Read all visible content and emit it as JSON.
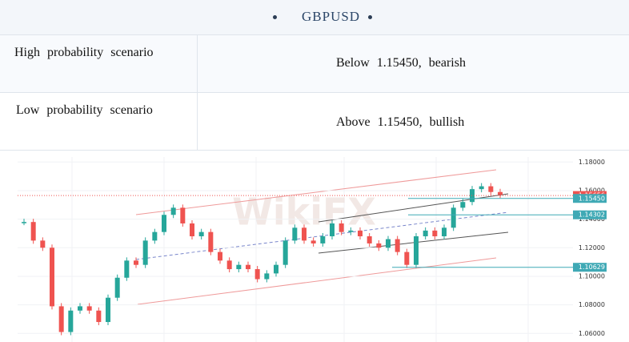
{
  "header": {
    "title": "GBPUSD"
  },
  "table": {
    "rows": [
      [
        "High probability scenario",
        "Below 1.15450, bearish"
      ],
      [
        "Low probability scenario",
        "Above 1.15450, bullish"
      ]
    ]
  },
  "chart_data": {
    "type": "candlestick",
    "watermark": "WikiFX",
    "values": [
      1.138,
      1.125,
      1.12,
      1.079,
      1.061,
      1.076,
      1.079,
      1.076,
      1.068,
      1.085,
      1.099,
      1.111,
      1.108,
      1.125,
      1.131,
      1.143,
      1.148,
      1.137,
      1.128,
      1.131,
      1.117,
      1.111,
      1.105,
      1.108,
      1.105,
      1.098,
      1.102,
      1.108,
      1.125,
      1.134,
      1.125,
      1.123,
      1.128,
      1.137,
      1.131,
      1.132,
      1.128,
      1.123,
      1.12,
      1.126,
      1.117,
      1.108,
      1.128,
      1.132,
      1.128,
      1.134,
      1.148,
      1.152,
      1.161,
      1.163,
      1.159,
      1.157
    ],
    "up_color": "#26a69a",
    "down_color": "#ef5350",
    "ylim": [
      1.054,
      1.188
    ],
    "yticks": [
      {
        "value": 1.18,
        "label": "1.18000"
      },
      {
        "value": 1.16,
        "label": "1.16000"
      },
      {
        "value": 1.14,
        "label": "1.14000"
      },
      {
        "value": 1.12,
        "label": "1.12000"
      },
      {
        "value": 1.1,
        "label": "1.10000"
      },
      {
        "value": 1.08,
        "label": "1.08000"
      },
      {
        "value": 1.06,
        "label": "1.06000"
      }
    ],
    "levels": [
      {
        "value": 1.15656,
        "label": "1.15656",
        "color": "#ef5350"
      },
      {
        "value": 1.1545,
        "label": "1.15450",
        "color": "#3fa9b5"
      },
      {
        "value": 1.14302,
        "label": "1.14302",
        "color": "#3fa9b5"
      },
      {
        "value": 1.10629,
        "label": "1.10629",
        "color": "#3fa9b5"
      }
    ],
    "grid": true
  }
}
